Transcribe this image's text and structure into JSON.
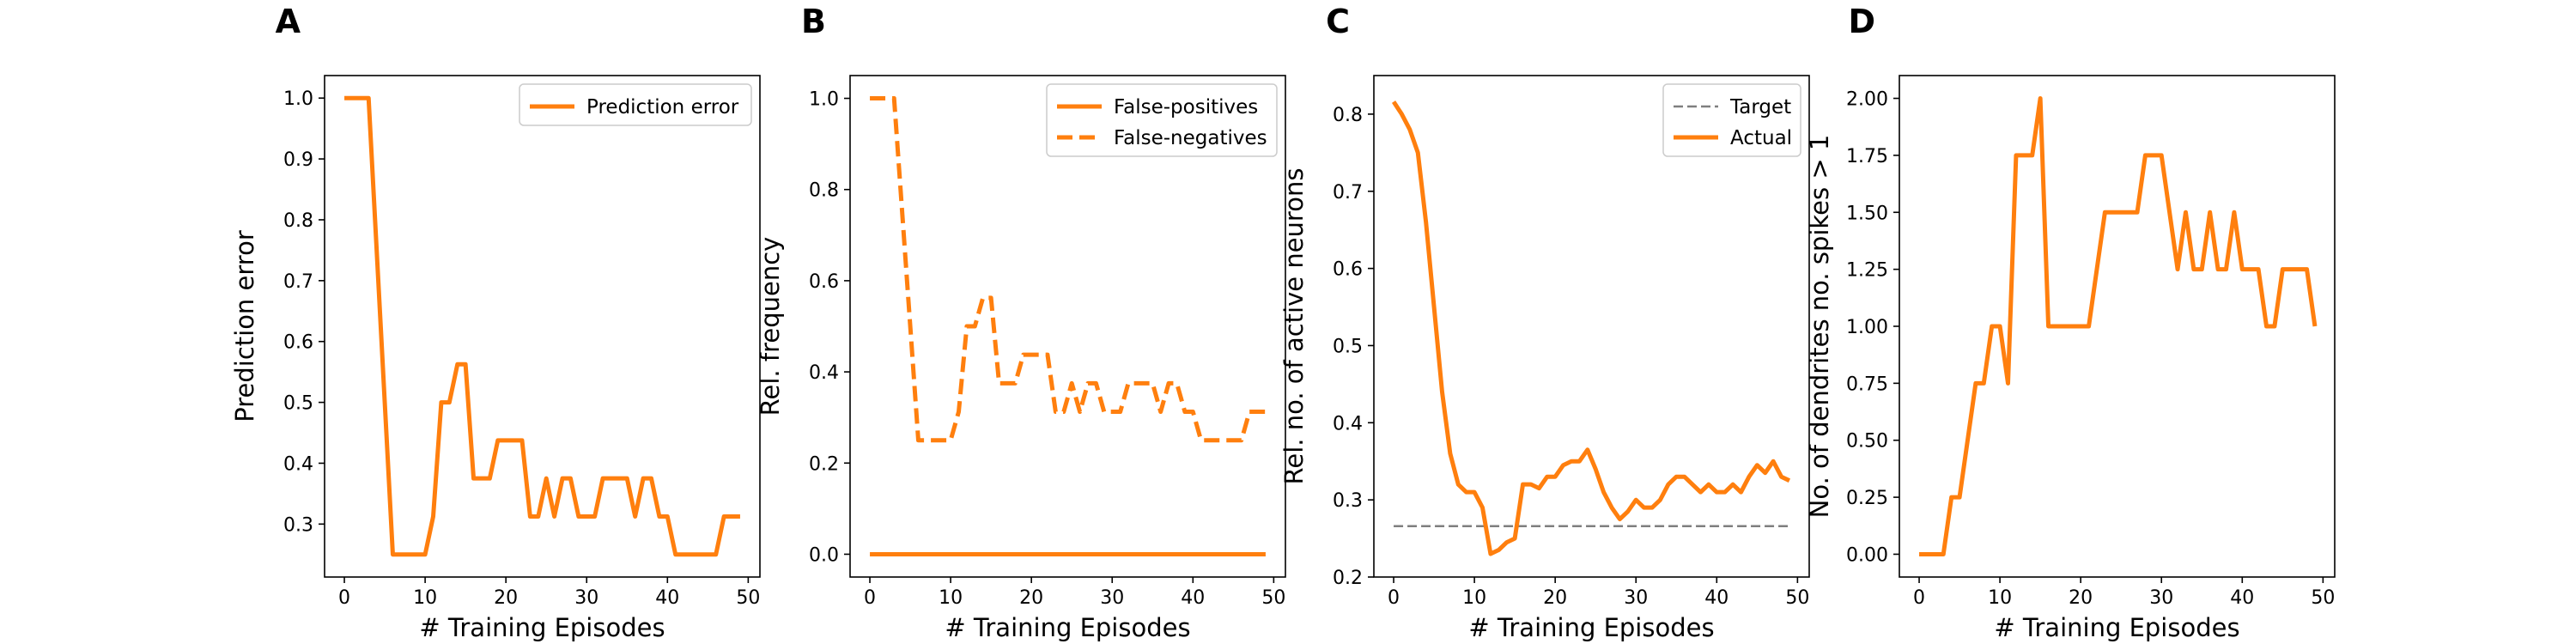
{
  "colors": {
    "series": "#ff7f0e",
    "target": "#7f7f7f",
    "axes": "#000000",
    "legend_border": "#cccccc"
  },
  "chart_data": [
    {
      "id": "A",
      "type": "line",
      "panel_label": "A",
      "xlabel": "# Training Episodes",
      "ylabel": "Prediction error",
      "xlim": [
        -2.45,
        51.45
      ],
      "ylim": [
        0.213,
        1.037
      ],
      "xticks": [
        0,
        10,
        20,
        30,
        40,
        50
      ],
      "yticks": [
        0.3,
        0.4,
        0.5,
        0.6,
        0.7,
        0.8,
        0.9,
        1.0
      ],
      "ytick_format": "1",
      "legend": {
        "position": "top-right"
      },
      "series": [
        {
          "name": "Prediction error",
          "style": "solid",
          "x": [
            0,
            1,
            2,
            3,
            4,
            5,
            6,
            7,
            8,
            9,
            10,
            11,
            12,
            13,
            14,
            15,
            16,
            17,
            18,
            19,
            20,
            21,
            22,
            23,
            24,
            25,
            26,
            27,
            28,
            29,
            30,
            31,
            32,
            33,
            34,
            35,
            36,
            37,
            38,
            39,
            40,
            41,
            42,
            43,
            44,
            45,
            46,
            47,
            48,
            49
          ],
          "y": [
            1.0,
            1.0,
            1.0,
            1.0,
            0.75,
            0.5,
            0.25,
            0.25,
            0.25,
            0.25,
            0.25,
            0.3125,
            0.5,
            0.5,
            0.5625,
            0.5625,
            0.375,
            0.375,
            0.375,
            0.4375,
            0.4375,
            0.4375,
            0.4375,
            0.3125,
            0.3125,
            0.375,
            0.3125,
            0.375,
            0.375,
            0.3125,
            0.3125,
            0.3125,
            0.375,
            0.375,
            0.375,
            0.375,
            0.3125,
            0.375,
            0.375,
            0.3125,
            0.3125,
            0.25,
            0.25,
            0.25,
            0.25,
            0.25,
            0.25,
            0.3125,
            0.3125,
            0.3125
          ]
        }
      ]
    },
    {
      "id": "B",
      "type": "line",
      "panel_label": "B",
      "xlabel": "# Training Episodes",
      "ylabel": "Rel. frequency",
      "xlim": [
        -2.45,
        51.45
      ],
      "ylim": [
        -0.05,
        1.05
      ],
      "xticks": [
        0,
        10,
        20,
        30,
        40,
        50
      ],
      "yticks": [
        0.0,
        0.2,
        0.4,
        0.6,
        0.8,
        1.0
      ],
      "ytick_format": "1",
      "legend": {
        "position": "top-right"
      },
      "series": [
        {
          "name": "False-positives",
          "style": "solid",
          "x": [
            0,
            1,
            2,
            3,
            4,
            5,
            6,
            7,
            8,
            9,
            10,
            11,
            12,
            13,
            14,
            15,
            16,
            17,
            18,
            19,
            20,
            21,
            22,
            23,
            24,
            25,
            26,
            27,
            28,
            29,
            30,
            31,
            32,
            33,
            34,
            35,
            36,
            37,
            38,
            39,
            40,
            41,
            42,
            43,
            44,
            45,
            46,
            47,
            48,
            49
          ],
          "y": [
            0,
            0,
            0,
            0,
            0,
            0,
            0,
            0,
            0,
            0,
            0,
            0,
            0,
            0,
            0,
            0,
            0,
            0,
            0,
            0,
            0,
            0,
            0,
            0,
            0,
            0,
            0,
            0,
            0,
            0,
            0,
            0,
            0,
            0,
            0,
            0,
            0,
            0,
            0,
            0,
            0,
            0,
            0,
            0,
            0,
            0,
            0,
            0,
            0,
            0
          ]
        },
        {
          "name": "False-negatives",
          "style": "dashed",
          "x": [
            0,
            1,
            2,
            3,
            4,
            5,
            6,
            7,
            8,
            9,
            10,
            11,
            12,
            13,
            14,
            15,
            16,
            17,
            18,
            19,
            20,
            21,
            22,
            23,
            24,
            25,
            26,
            27,
            28,
            29,
            30,
            31,
            32,
            33,
            34,
            35,
            36,
            37,
            38,
            39,
            40,
            41,
            42,
            43,
            44,
            45,
            46,
            47,
            48,
            49
          ],
          "y": [
            1.0,
            1.0,
            1.0,
            1.0,
            0.75,
            0.5,
            0.25,
            0.25,
            0.25,
            0.25,
            0.25,
            0.3125,
            0.5,
            0.5,
            0.5625,
            0.5625,
            0.375,
            0.375,
            0.375,
            0.4375,
            0.4375,
            0.4375,
            0.4375,
            0.3125,
            0.3125,
            0.375,
            0.3125,
            0.375,
            0.375,
            0.3125,
            0.3125,
            0.3125,
            0.375,
            0.375,
            0.375,
            0.375,
            0.3125,
            0.375,
            0.375,
            0.3125,
            0.3125,
            0.25,
            0.25,
            0.25,
            0.25,
            0.25,
            0.25,
            0.3125,
            0.3125,
            0.3125
          ]
        }
      ]
    },
    {
      "id": "C",
      "type": "line",
      "panel_label": "C",
      "xlabel": "# Training Episodes",
      "ylabel": "Rel. no. of active neurons",
      "xlim": [
        -2.45,
        51.45
      ],
      "ylim": [
        0.2,
        0.85
      ],
      "xticks": [
        0,
        10,
        20,
        30,
        40,
        50
      ],
      "yticks": [
        0.2,
        0.3,
        0.4,
        0.5,
        0.6,
        0.7,
        0.8
      ],
      "ytick_format": "1",
      "legend": {
        "position": "top-right"
      },
      "series": [
        {
          "name": "Target",
          "style": "thin-dashed",
          "x": [
            0,
            49
          ],
          "y": [
            0.266,
            0.266
          ]
        },
        {
          "name": "Actual",
          "style": "solid",
          "x": [
            0,
            1,
            2,
            3,
            4,
            5,
            6,
            7,
            8,
            9,
            10,
            11,
            12,
            13,
            14,
            15,
            16,
            17,
            18,
            19,
            20,
            21,
            22,
            23,
            24,
            25,
            26,
            27,
            28,
            29,
            30,
            31,
            32,
            33,
            34,
            35,
            36,
            37,
            38,
            39,
            40,
            41,
            42,
            43,
            44,
            45,
            46,
            47,
            48,
            49
          ],
          "y": [
            0.816,
            0.8,
            0.78,
            0.75,
            0.66,
            0.55,
            0.44,
            0.36,
            0.32,
            0.31,
            0.31,
            0.29,
            0.23,
            0.235,
            0.245,
            0.25,
            0.32,
            0.32,
            0.315,
            0.33,
            0.33,
            0.345,
            0.35,
            0.35,
            0.365,
            0.34,
            0.31,
            0.29,
            0.275,
            0.285,
            0.3,
            0.29,
            0.29,
            0.3,
            0.32,
            0.33,
            0.33,
            0.32,
            0.31,
            0.32,
            0.31,
            0.31,
            0.32,
            0.31,
            0.33,
            0.345,
            0.335,
            0.35,
            0.33,
            0.325
          ]
        }
      ]
    },
    {
      "id": "D",
      "type": "line",
      "panel_label": "D",
      "xlabel": "# Training Episodes",
      "ylabel": "No. of dendrites no. spikes > 1",
      "xlim": [
        -2.45,
        51.45
      ],
      "ylim": [
        -0.1,
        2.1
      ],
      "xticks": [
        0,
        10,
        20,
        30,
        40,
        50
      ],
      "yticks": [
        0.0,
        0.25,
        0.5,
        0.75,
        1.0,
        1.25,
        1.5,
        1.75,
        2.0
      ],
      "ytick_format": "2",
      "legend": null,
      "series": [
        {
          "style": "solid",
          "x": [
            0,
            1,
            2,
            3,
            4,
            5,
            6,
            7,
            8,
            9,
            10,
            11,
            12,
            13,
            14,
            15,
            16,
            17,
            18,
            19,
            20,
            21,
            22,
            23,
            24,
            25,
            26,
            27,
            28,
            29,
            30,
            31,
            32,
            33,
            34,
            35,
            36,
            37,
            38,
            39,
            40,
            41,
            42,
            43,
            44,
            45,
            46,
            47,
            48,
            49
          ],
          "y": [
            0,
            0,
            0,
            0,
            0.25,
            0.25,
            0.5,
            0.75,
            0.75,
            1.0,
            1.0,
            0.75,
            1.75,
            1.75,
            1.75,
            2.0,
            1.0,
            1.0,
            1.0,
            1.0,
            1.0,
            1.0,
            1.25,
            1.5,
            1.5,
            1.5,
            1.5,
            1.5,
            1.75,
            1.75,
            1.75,
            1.5,
            1.25,
            1.5,
            1.25,
            1.25,
            1.5,
            1.25,
            1.25,
            1.5,
            1.25,
            1.25,
            1.25,
            1.0,
            1.0,
            1.25,
            1.25,
            1.25,
            1.25,
            1.0
          ]
        }
      ]
    }
  ]
}
